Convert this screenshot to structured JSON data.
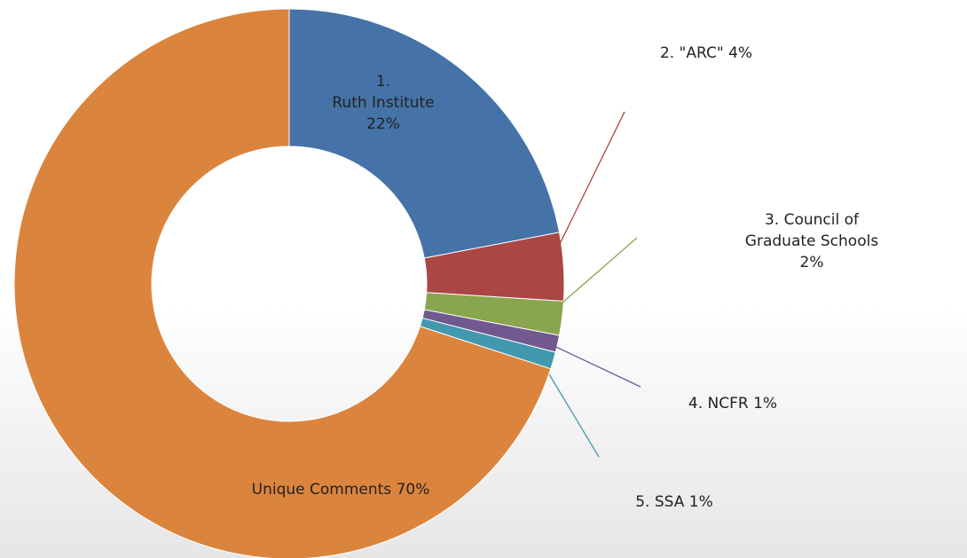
{
  "chart_data": {
    "type": "donut",
    "categories": [
      "1.\nRuth Institute",
      "2. \"ARC\"",
      "3. Council of Graduate Schools",
      "4. NCFR ",
      "5. SSA",
      "Unique Comments  "
    ],
    "values": [
      22,
      4,
      2,
      1,
      1,
      70
    ],
    "value_labels": [
      "22%",
      "4%",
      "2%",
      "1%",
      "1%",
      "70%"
    ],
    "colors": [
      "#4572a7",
      "#aa4643",
      "#89a54e",
      "#71588f",
      "#4198af",
      "#db843d"
    ]
  }
}
